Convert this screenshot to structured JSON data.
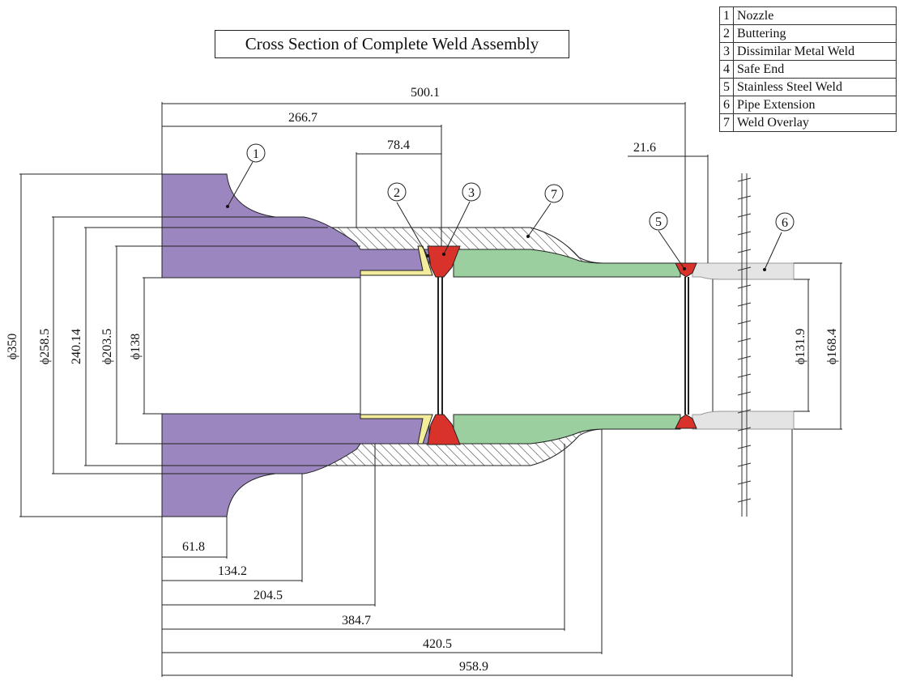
{
  "title": "Cross Section of Complete Weld Assembly",
  "legend": [
    {
      "num": "1",
      "name": "Nozzle"
    },
    {
      "num": "2",
      "name": "Buttering"
    },
    {
      "num": "3",
      "name": "Dissimilar Metal Weld"
    },
    {
      "num": "4",
      "name": "Safe End"
    },
    {
      "num": "5",
      "name": "Stainless Steel Weld"
    },
    {
      "num": "6",
      "name": "Pipe Extension"
    },
    {
      "num": "7",
      "name": "Weld Overlay"
    }
  ],
  "callouts": [
    "1",
    "2",
    "3",
    "7",
    "5",
    "6"
  ],
  "dimensions": {
    "top": [
      "500.1",
      "266.7",
      "78.4",
      "21.6"
    ],
    "left_diameters": [
      "ϕ350",
      "ϕ258.5",
      "240.14",
      "ϕ203.5",
      "ϕ138"
    ],
    "right_diameters": [
      "ϕ131.9",
      "ϕ168.4"
    ],
    "bottom": [
      "61.8",
      "134.2",
      "204.5",
      "384.7",
      "420.5",
      "958.9"
    ]
  },
  "colors": {
    "nozzle": "#9b86bf",
    "buttering": "#f3ec9a",
    "weld": "#d8322b",
    "safe_end": "#9ccf9f",
    "pipe_extension": "#e4e4e4",
    "overlay_hatch": "#444444",
    "line": "#222222"
  }
}
